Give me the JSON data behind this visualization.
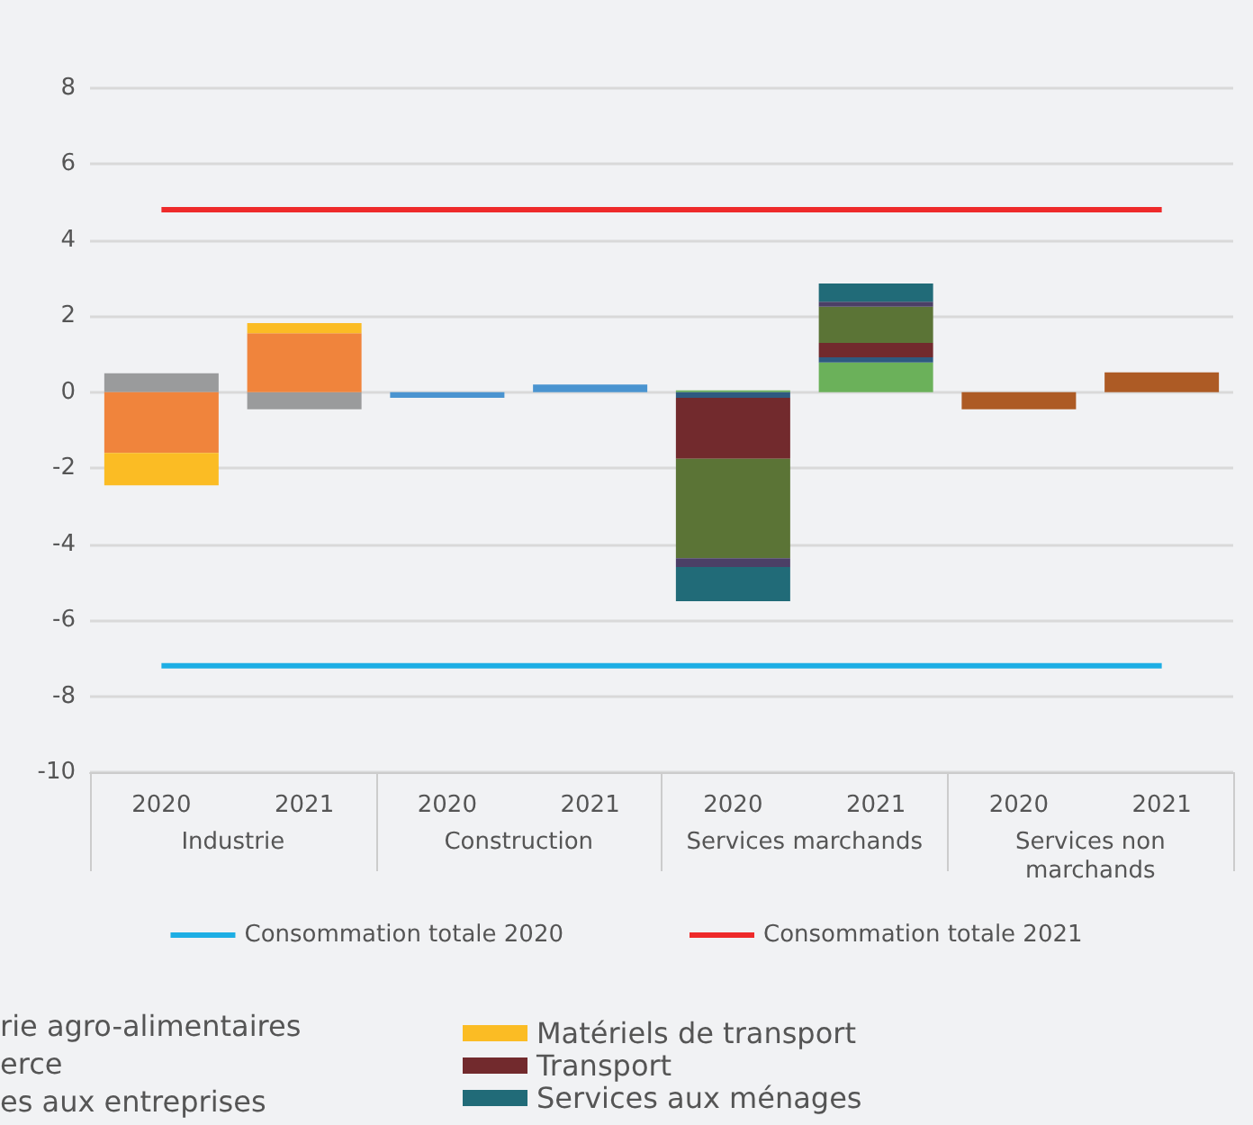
{
  "chart_data": {
    "type": "bar",
    "stacked": true,
    "categories": [
      "2020",
      "2021",
      "2020",
      "2021",
      "2020",
      "2021",
      "2020",
      "2021"
    ],
    "series": [
      {
        "color": "#9a9b9c",
        "values": [
          0.5,
          -0.45,
          null,
          null,
          null,
          null,
          null,
          null
        ]
      },
      {
        "color": "#f0843c",
        "values": [
          -1.6,
          1.55,
          null,
          null,
          null,
          null,
          null,
          null
        ]
      },
      {
        "name": "Matériels de transport",
        "color": "#fbbc24",
        "values": [
          -0.85,
          0.27,
          null,
          null,
          null,
          null,
          null,
          null
        ]
      },
      {
        "color": "#4a94d0",
        "values": [
          null,
          null,
          -0.15,
          0.2,
          null,
          null,
          null,
          null
        ]
      },
      {
        "color": "#6bb15a",
        "values": [
          null,
          null,
          null,
          null,
          0.05,
          0.78,
          null,
          null
        ]
      },
      {
        "color": "#2e5a80",
        "values": [
          null,
          null,
          null,
          null,
          -0.15,
          0.14,
          null,
          null
        ]
      },
      {
        "name": "Transport",
        "color": "#722a2d",
        "values": [
          null,
          null,
          null,
          null,
          -1.6,
          0.38,
          null,
          null
        ]
      },
      {
        "color": "#5b7436",
        "values": [
          null,
          null,
          null,
          null,
          -2.62,
          0.95,
          null,
          null
        ]
      },
      {
        "color": "#4b3f66",
        "values": [
          null,
          null,
          null,
          null,
          -0.23,
          0.13,
          null,
          null
        ]
      },
      {
        "name": "Services aux ménages",
        "color": "#216b78",
        "values": [
          null,
          null,
          null,
          null,
          -0.9,
          0.48,
          null,
          null
        ]
      },
      {
        "color": "#ad5b25",
        "values": [
          null,
          null,
          null,
          null,
          null,
          null,
          -0.45,
          0.52
        ]
      },
      {
        "type": "line",
        "name": "Consommation totale 2020",
        "color": "#1eaee4",
        "values": [
          -7.2,
          -7.2,
          -7.2,
          -7.2,
          -7.2,
          -7.2,
          -7.2,
          -7.2
        ]
      },
      {
        "type": "line",
        "name": "Consommation totale 2021",
        "color": "#ee2a2a",
        "values": [
          4.8,
          4.8,
          4.8,
          4.8,
          4.8,
          4.8,
          4.8,
          4.8
        ]
      }
    ],
    "annotations": [
      "Industrie",
      "Construction",
      "Services marchands",
      "Services non\nmarchands",
      "rie agro-alimentaires",
      "erce",
      "es aux entreprises"
    ],
    "ylim": [
      -10,
      8
    ],
    "yticks": [
      -10,
      -8,
      -6,
      -4,
      -2,
      0,
      2,
      4,
      6,
      8
    ],
    "grid": "y",
    "legend": "bottom",
    "marker": "none",
    "line_style": "solid"
  }
}
